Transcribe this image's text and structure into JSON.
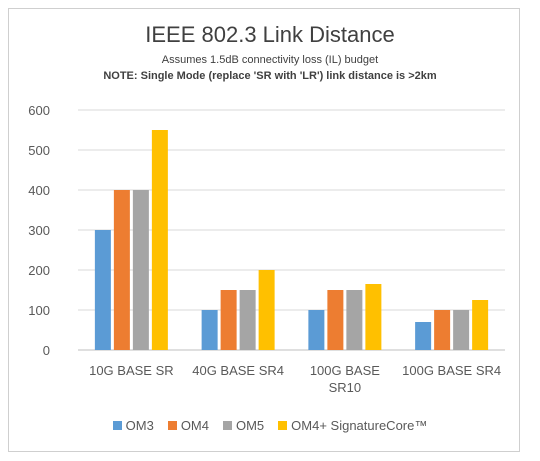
{
  "chart_data": {
    "type": "bar",
    "title": "IEEE 802.3 Link Distance",
    "subtitle": "Assumes 1.5dB connectivity loss (IL) budget",
    "note": "NOTE: Single Mode (replace 'SR with 'LR') link distance is >2km",
    "categories": [
      [
        "10G BASE SR"
      ],
      [
        "40G BASE SR4"
      ],
      [
        "100G BASE",
        "SR10"
      ],
      [
        "100G BASE SR4"
      ]
    ],
    "series": [
      {
        "name": "OM3",
        "color": "#5b9bd5",
        "values": [
          300,
          100,
          100,
          70
        ]
      },
      {
        "name": "OM4",
        "color": "#ed7d31",
        "values": [
          400,
          150,
          150,
          100
        ]
      },
      {
        "name": "OM5",
        "color": "#a5a5a5",
        "values": [
          400,
          150,
          150,
          100
        ]
      },
      {
        "name": "OM4+ SignatureCore™",
        "color": "#ffc000",
        "values": [
          550,
          200,
          165,
          125
        ]
      }
    ],
    "ylim": [
      0,
      600
    ],
    "yticks": [
      0,
      100,
      200,
      300,
      400,
      500,
      600
    ],
    "grid": true,
    "legend": "bottom"
  }
}
